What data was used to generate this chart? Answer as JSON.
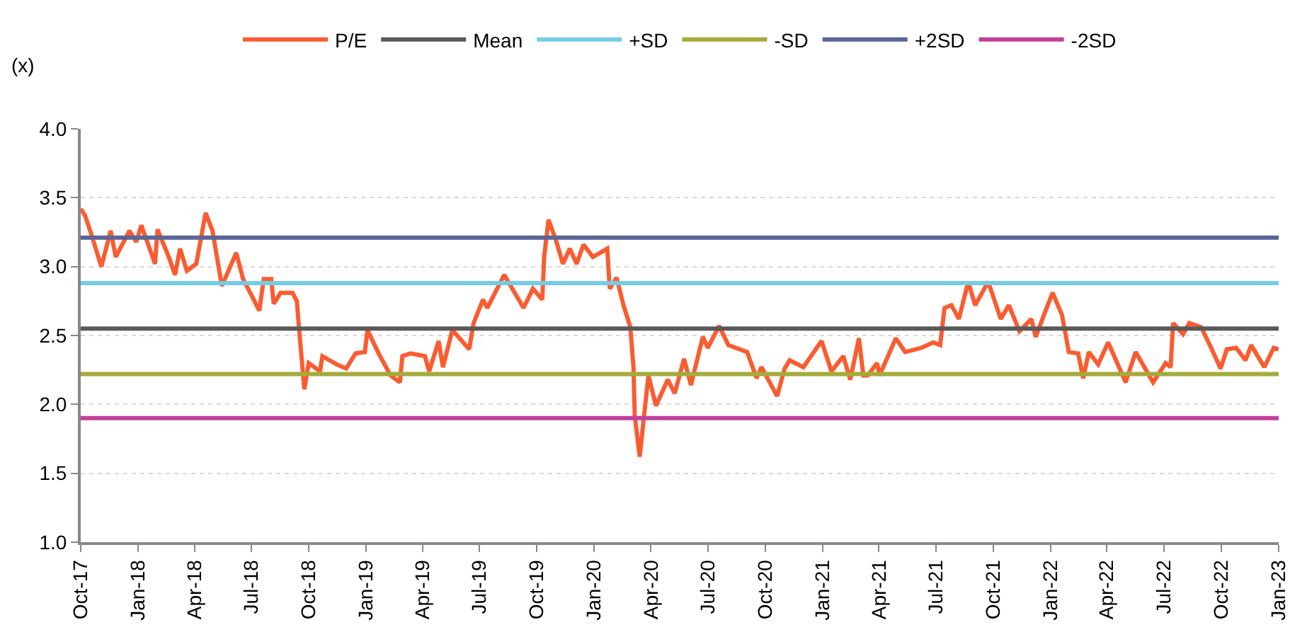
{
  "chart_data": {
    "type": "line",
    "ylabel": "(x)",
    "xlim": [
      "2017-10-01",
      "2023-01-01"
    ],
    "ylim": [
      1,
      4
    ],
    "yticks": [
      {
        "value": 1,
        "label": "1.0"
      },
      {
        "value": 1.5,
        "label": "1.5"
      },
      {
        "value": 2,
        "label": "2.0"
      },
      {
        "value": 2.5,
        "label": "2.5"
      },
      {
        "value": 3,
        "label": "3.0"
      },
      {
        "value": 3.5,
        "label": "3.5"
      },
      {
        "value": 4,
        "label": "4.0"
      }
    ],
    "xticks": [
      {
        "value": "2017-10-01",
        "label": "Oct-17"
      },
      {
        "value": "2018-01-01",
        "label": "Jan-18"
      },
      {
        "value": "2018-04-01",
        "label": "Apr-18"
      },
      {
        "value": "2018-07-01",
        "label": "Jul-18"
      },
      {
        "value": "2018-10-01",
        "label": "Oct-18"
      },
      {
        "value": "2019-01-01",
        "label": "Jan-19"
      },
      {
        "value": "2019-04-01",
        "label": "Apr-19"
      },
      {
        "value": "2019-07-01",
        "label": "Jul-19"
      },
      {
        "value": "2019-10-01",
        "label": "Oct-19"
      },
      {
        "value": "2020-01-01",
        "label": "Jan-20"
      },
      {
        "value": "2020-04-01",
        "label": "Apr-20"
      },
      {
        "value": "2020-07-01",
        "label": "Jul-20"
      },
      {
        "value": "2020-10-01",
        "label": "Oct-20"
      },
      {
        "value": "2021-01-01",
        "label": "Jan-21"
      },
      {
        "value": "2021-04-01",
        "label": "Apr-21"
      },
      {
        "value": "2021-07-01",
        "label": "Jul-21"
      },
      {
        "value": "2021-10-01",
        "label": "Oct-21"
      },
      {
        "value": "2022-01-01",
        "label": "Jan-22"
      },
      {
        "value": "2022-04-01",
        "label": "Apr-22"
      },
      {
        "value": "2022-07-01",
        "label": "Jul-22"
      },
      {
        "value": "2022-10-01",
        "label": "Oct-22"
      },
      {
        "value": "2023-01-01",
        "label": "Jan-23"
      }
    ],
    "grid": "y",
    "legend": "top",
    "marker": "none",
    "line_style": "solid",
    "series": [
      {
        "name": "P/E",
        "color": "#fa5c30",
        "x": [
          "2017-10-01",
          "2017-10-08",
          "2017-10-19",
          "2017-11-03",
          "2017-11-18",
          "2017-11-26",
          "2017-12-18",
          "2017-12-29",
          "2018-01-06",
          "2018-01-28",
          "2018-02-01",
          "2018-02-19",
          "2018-03-01",
          "2018-03-09",
          "2018-03-20",
          "2018-04-04",
          "2018-04-19",
          "2018-04-30",
          "2018-05-15",
          "2018-06-07",
          "2018-06-18",
          "2018-07-14",
          "2018-07-21",
          "2018-08-02",
          "2018-08-06",
          "2018-08-17",
          "2018-09-05",
          "2018-09-12",
          "2018-09-16",
          "2018-09-24",
          "2018-10-01",
          "2018-10-19",
          "2018-10-23",
          "2018-11-15",
          "2018-11-30",
          "2018-12-15",
          "2018-12-30",
          "2019-01-03",
          "2019-01-21",
          "2019-02-09",
          "2019-02-24",
          "2019-02-28",
          "2019-03-13",
          "2019-04-05",
          "2019-04-12",
          "2019-04-27",
          "2019-05-04",
          "2019-05-19",
          "2019-06-15",
          "2019-06-22",
          "2019-07-07",
          "2019-07-14",
          "2019-08-10",
          "2019-09-10",
          "2019-09-25",
          "2019-10-10",
          "2019-10-13",
          "2019-10-20",
          "2019-11-01",
          "2019-11-12",
          "2019-11-23",
          "2019-12-04",
          "2019-12-15",
          "2019-12-30",
          "2020-01-22",
          "2020-01-26",
          "2020-02-06",
          "2020-02-17",
          "2020-02-28",
          "2020-03-04",
          "2020-03-06",
          "2020-03-14",
          "2020-03-21",
          "2020-03-28",
          "2020-04-09",
          "2020-04-28",
          "2020-05-09",
          "2020-05-24",
          "2020-06-04",
          "2020-06-23",
          "2020-07-01",
          "2020-07-19",
          "2020-08-03",
          "2020-09-02",
          "2020-09-17",
          "2020-09-25",
          "2020-10-20",
          "2020-11-01",
          "2020-11-09",
          "2020-12-01",
          "2020-12-30",
          "2021-01-15",
          "2021-02-03",
          "2021-02-14",
          "2021-02-28",
          "2021-03-07",
          "2021-03-14",
          "2021-03-29",
          "2021-04-02",
          "2021-04-28",
          "2021-05-13",
          "2021-06-08",
          "2021-06-27",
          "2021-07-08",
          "2021-07-15",
          "2021-07-26",
          "2021-08-07",
          "2021-08-22",
          "2021-09-02",
          "2021-09-23",
          "2021-10-13",
          "2021-10-26",
          "2021-11-12",
          "2021-12-01",
          "2021-12-08",
          "2021-12-23",
          "2022-01-04",
          "2022-01-19",
          "2022-01-30",
          "2022-02-14",
          "2022-02-22",
          "2022-03-03",
          "2022-03-18",
          "2022-04-03",
          "2022-05-01",
          "2022-05-17",
          "2022-06-14",
          "2022-07-04",
          "2022-07-12",
          "2022-07-16",
          "2022-08-01",
          "2022-08-11",
          "2022-08-30",
          "2022-09-18",
          "2022-09-30",
          "2022-10-10",
          "2022-10-25",
          "2022-11-09",
          "2022-11-18",
          "2022-12-09",
          "2022-12-24",
          "2023-01-01"
        ],
        "values": [
          3.42,
          3.37,
          3.22,
          3.0,
          3.26,
          3.07,
          3.26,
          3.18,
          3.3,
          3.02,
          3.27,
          3.07,
          2.94,
          3.13,
          2.97,
          3.02,
          3.39,
          3.26,
          2.86,
          3.1,
          2.91,
          2.68,
          2.91,
          2.91,
          2.73,
          2.81,
          2.81,
          2.75,
          2.53,
          2.11,
          2.3,
          2.24,
          2.35,
          2.29,
          2.26,
          2.37,
          2.38,
          2.54,
          2.37,
          2.21,
          2.16,
          2.35,
          2.37,
          2.35,
          2.24,
          2.46,
          2.27,
          2.54,
          2.4,
          2.59,
          2.76,
          2.7,
          2.94,
          2.7,
          2.84,
          2.76,
          3.07,
          3.34,
          3.19,
          3.02,
          3.13,
          3.02,
          3.16,
          3.07,
          3.13,
          2.84,
          2.92,
          2.72,
          2.56,
          2.27,
          1.92,
          1.62,
          1.92,
          2.21,
          1.99,
          2.18,
          2.08,
          2.33,
          2.14,
          2.49,
          2.41,
          2.57,
          2.43,
          2.38,
          2.19,
          2.27,
          2.06,
          2.26,
          2.32,
          2.27,
          2.46,
          2.24,
          2.35,
          2.18,
          2.48,
          2.21,
          2.21,
          2.3,
          2.21,
          2.48,
          2.38,
          2.41,
          2.45,
          2.43,
          2.7,
          2.72,
          2.62,
          2.89,
          2.72,
          2.89,
          2.62,
          2.72,
          2.53,
          2.62,
          2.49,
          2.67,
          2.81,
          2.65,
          2.38,
          2.37,
          2.19,
          2.38,
          2.29,
          2.45,
          2.16,
          2.38,
          2.16,
          2.3,
          2.27,
          2.59,
          2.51,
          2.59,
          2.56,
          2.38,
          2.26,
          2.4,
          2.41,
          2.32,
          2.43,
          2.27,
          2.41,
          2.4
        ]
      },
      {
        "name": "Mean",
        "color": "#595959",
        "x": [
          "2017-10-01",
          "2023-01-01"
        ],
        "values": [
          2.55,
          2.55
        ]
      },
      {
        "name": "+SD",
        "color": "#74cde3",
        "x": [
          "2017-10-01",
          "2023-01-01"
        ],
        "values": [
          2.88,
          2.88
        ]
      },
      {
        "name": "-SD",
        "color": "#a4ab3a",
        "x": [
          "2017-10-01",
          "2023-01-01"
        ],
        "values": [
          2.22,
          2.22
        ]
      },
      {
        "name": "+2SD",
        "color": "#5a6496",
        "x": [
          "2017-10-01",
          "2023-01-01"
        ],
        "values": [
          3.21,
          3.21
        ]
      },
      {
        "name": "-2SD",
        "color": "#c0409a",
        "x": [
          "2017-10-01",
          "2023-01-01"
        ],
        "values": [
          1.9,
          1.9
        ]
      }
    ]
  }
}
